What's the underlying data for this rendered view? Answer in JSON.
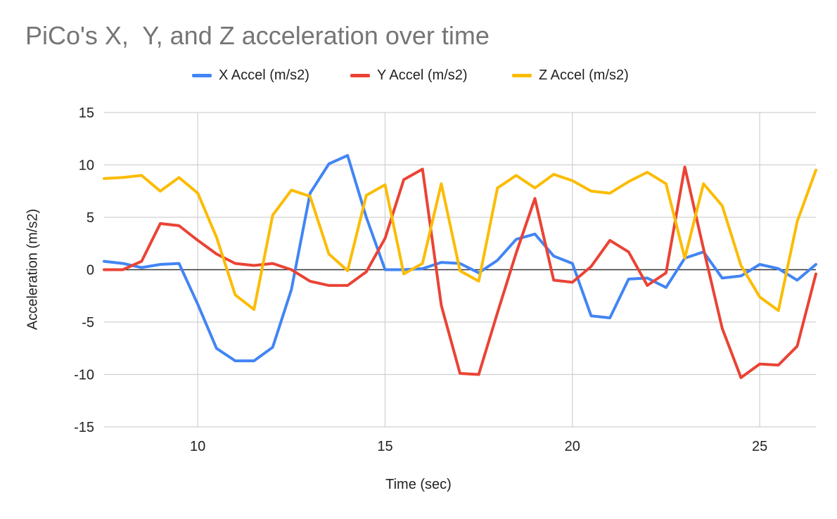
{
  "chart_data": {
    "type": "line",
    "title": "PiCo's X,  Y, and Z acceleration over time",
    "xlabel": "Time (sec)",
    "ylabel": "Acceleration (m/s2)",
    "xlim": [
      7.5,
      26.5
    ],
    "ylim": [
      -15,
      15
    ],
    "x_ticks": [
      10,
      15,
      20,
      25
    ],
    "y_ticks": [
      15,
      10,
      5,
      0,
      -5,
      -10,
      -15
    ],
    "grid": true,
    "legend_position": "top",
    "x": [
      7.5,
      8.0,
      8.5,
      9.0,
      9.5,
      10.0,
      10.5,
      11.0,
      11.5,
      12.0,
      12.5,
      13.0,
      13.5,
      14.0,
      14.5,
      15.0,
      15.5,
      16.0,
      16.5,
      17.0,
      17.5,
      18.0,
      18.5,
      19.0,
      19.5,
      20.0,
      20.5,
      21.0,
      21.5,
      22.0,
      22.5,
      23.0,
      23.5,
      24.0,
      24.5,
      25.0,
      25.5,
      26.0,
      26.5
    ],
    "series": [
      {
        "name": "X Accel (m/s2)",
        "color": "#4285f4",
        "values": [
          0.8,
          0.6,
          0.2,
          0.5,
          0.6,
          -3.3,
          -7.5,
          -8.7,
          -8.7,
          -7.4,
          -1.9,
          7.3,
          10.1,
          10.9,
          5.0,
          0.0,
          0.0,
          0.1,
          0.7,
          0.6,
          -0.3,
          0.9,
          2.9,
          3.4,
          1.3,
          0.6,
          -4.4,
          -4.6,
          -0.9,
          -0.8,
          -1.7,
          1.1,
          1.7,
          -0.8,
          -0.6,
          0.5,
          0.1,
          -1.0,
          0.5
        ]
      },
      {
        "name": "Y Accel (m/s2)",
        "color": "#ea4335",
        "values": [
          0.0,
          0.0,
          0.8,
          4.4,
          4.2,
          2.8,
          1.5,
          0.6,
          0.4,
          0.6,
          0.0,
          -1.1,
          -1.5,
          -1.5,
          -0.2,
          3.0,
          8.6,
          9.6,
          -3.4,
          -9.9,
          -10.0,
          -4.1,
          1.6,
          6.8,
          -1.0,
          -1.2,
          0.3,
          2.8,
          1.7,
          -1.5,
          -0.3,
          9.8,
          2.0,
          -5.6,
          -10.3,
          -9.0,
          -9.1,
          -7.3,
          -0.4
        ]
      },
      {
        "name": "Z Accel (m/s2)",
        "color": "#fbbc04",
        "values": [
          8.7,
          8.8,
          9.0,
          7.5,
          8.8,
          7.3,
          3.1,
          -2.4,
          -3.8,
          5.2,
          7.6,
          7.0,
          1.5,
          -0.1,
          7.1,
          8.1,
          -0.4,
          0.6,
          8.2,
          -0.1,
          -1.1,
          7.8,
          9.0,
          7.8,
          9.1,
          8.5,
          7.5,
          7.3,
          8.4,
          9.3,
          8.2,
          1.1,
          8.2,
          6.1,
          0.4,
          -2.6,
          -3.9,
          4.6,
          9.5
        ]
      }
    ]
  }
}
